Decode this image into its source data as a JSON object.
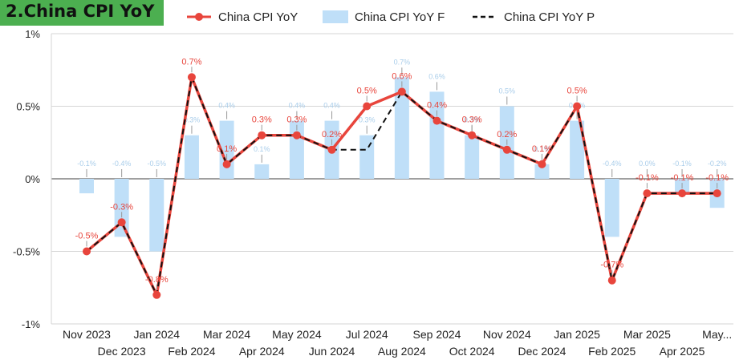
{
  "title": "2.China CPI YoY",
  "colors": {
    "title_bg": "#4caf50",
    "actual": "#e8453c",
    "forecast_bar": "#bfdff8",
    "forecast_label": "#a9cdea",
    "previous": "#111111",
    "grid": "#d6d6d6",
    "axis": "#666666",
    "text": "#222222"
  },
  "legend": {
    "actual": "China CPI YoY",
    "forecast": "China CPI YoY F",
    "previous": "China CPI YoY P"
  },
  "chart_data": {
    "type": "bar+line",
    "categories": [
      "Nov 2023",
      "Dec 2023",
      "Jan 2024",
      "Feb 2024",
      "Mar 2024",
      "Apr 2024",
      "May 2024",
      "Jun 2024",
      "Jul 2024",
      "Aug 2024",
      "Sep 2024",
      "Oct 2024",
      "Nov 2024",
      "Dec 2024",
      "Jan 2025",
      "Feb 2025",
      "Mar 2025",
      "Apr 2025",
      "May..."
    ],
    "y_ticks": [
      1,
      0.5,
      0,
      -0.5,
      -1
    ],
    "y_tick_labels": [
      "1%",
      "0.5%",
      "0%",
      "-0.5%",
      "-1%"
    ],
    "ylim": [
      -1,
      1
    ],
    "grid": true,
    "legend_position": "top",
    "series": [
      {
        "name": "China CPI YoY",
        "type": "line",
        "values": [
          -0.5,
          -0.3,
          -0.8,
          0.7,
          0.1,
          0.3,
          0.3,
          0.2,
          0.5,
          0.6,
          0.4,
          0.3,
          0.2,
          0.1,
          0.5,
          -0.7,
          -0.1,
          -0.1,
          -0.1
        ],
        "labels": [
          "-0.5%",
          "-0.3%",
          "-0.8%",
          "0.7%",
          "0.1%",
          "0.3%",
          "0.3%",
          "0.2%",
          "0.5%",
          "0.6%",
          "0.4%",
          "0.3%",
          "0.2%",
          "0.1%",
          "0.5%",
          "-0.7%",
          "-0.1%",
          "-0.1%",
          "-0.1%"
        ]
      },
      {
        "name": "China CPI YoY F",
        "type": "bar",
        "values": [
          -0.1,
          -0.4,
          -0.5,
          0.3,
          0.4,
          0.1,
          0.4,
          0.4,
          0.3,
          0.7,
          0.6,
          0.3,
          0.5,
          0.1,
          0.4,
          -0.4,
          0.0,
          -0.1,
          -0.2
        ],
        "labels": [
          "-0.1%",
          "-0.4%",
          "-0.5%",
          "0.3%",
          "0.4%",
          "0.1%",
          "0.4%",
          "0.4%",
          "0.3%",
          "0.7%",
          "0.6%",
          "0.3%",
          "0.5%",
          "0.1%",
          "0.4%",
          "-0.4%",
          "0.0%",
          "-0.1%",
          "-0.2%"
        ]
      },
      {
        "name": "China CPI YoY P",
        "type": "line-dashed",
        "values": [
          -0.5,
          -0.3,
          -0.8,
          0.7,
          0.1,
          0.3,
          0.3,
          0.2,
          0.2,
          0.6,
          0.4,
          0.3,
          0.2,
          0.1,
          0.5,
          -0.7,
          -0.1,
          -0.1,
          -0.1
        ]
      }
    ]
  }
}
